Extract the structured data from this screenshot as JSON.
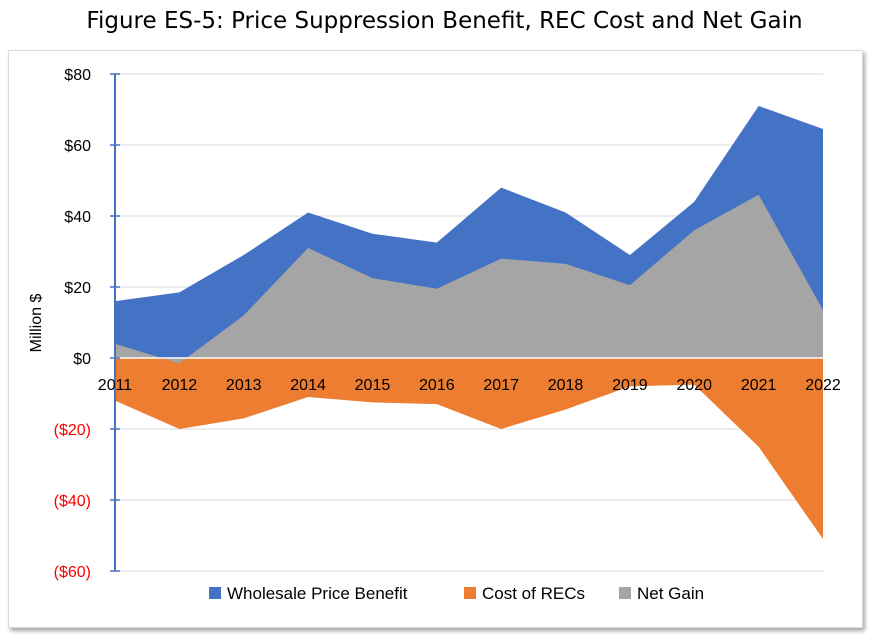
{
  "chart_data": {
    "type": "area",
    "title": "Figure ES-5: Price Suppression Benefit, REC Cost and Net Gain",
    "ylabel": "Million $",
    "xlabel": "",
    "ylim": [
      -60,
      80
    ],
    "y_ticks": [
      80,
      60,
      40,
      20,
      0,
      -20,
      -40,
      -60
    ],
    "y_tick_labels": [
      "$80",
      "$60",
      "$40",
      "$20",
      "$0",
      "($20)",
      "($40)",
      "($60)"
    ],
    "categories": [
      "2011",
      "2012",
      "2013",
      "2014",
      "2015",
      "2016",
      "2017",
      "2018",
      "2019",
      "2020",
      "2021",
      "2022"
    ],
    "grid": true,
    "legend_position": "bottom",
    "series": [
      {
        "name": "Wholesale Price Benefit",
        "color": "#4472c4",
        "values": [
          16,
          18.5,
          29,
          41,
          35,
          32.5,
          48,
          41,
          29,
          44,
          71,
          64.5
        ]
      },
      {
        "name": "Cost of RECs",
        "color": "#ed7d31",
        "values": [
          -12,
          -20,
          -17,
          -11,
          -12.5,
          -13,
          -20,
          -14.5,
          -8,
          -7.5,
          -25,
          -51
        ]
      },
      {
        "name": "Net Gain",
        "color": "#a5a5a5",
        "values": [
          4,
          -1.5,
          12,
          31,
          22.5,
          19.5,
          28,
          26.5,
          20.5,
          36,
          46,
          13.5
        ]
      }
    ]
  }
}
